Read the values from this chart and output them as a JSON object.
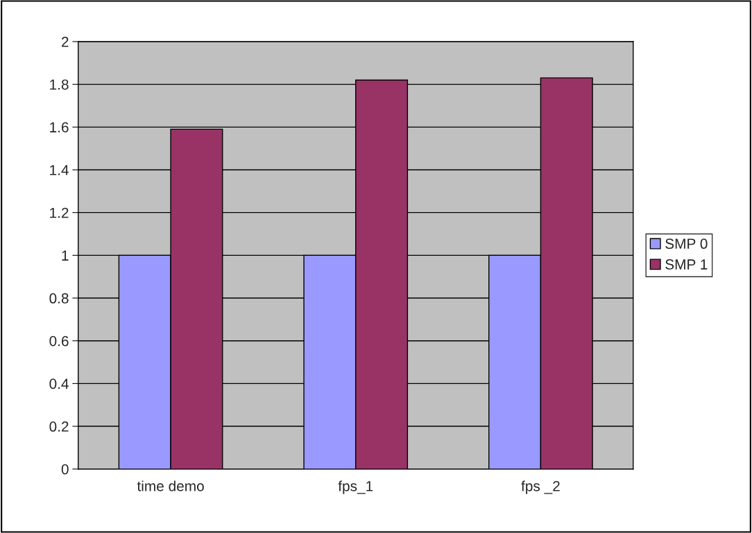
{
  "chart_data": {
    "type": "bar",
    "categories": [
      "time demo",
      "fps_1",
      "fps _2"
    ],
    "series": [
      {
        "name": "SMP 0",
        "color": "#9999ff",
        "values": [
          1,
          1,
          1
        ]
      },
      {
        "name": "SMP 1",
        "color": "#993366",
        "values": [
          1.59,
          1.82,
          1.83
        ]
      }
    ],
    "ylim": [
      0,
      2
    ],
    "yticks": [
      0,
      0.2,
      0.4,
      0.6,
      0.8,
      1,
      1.2,
      1.4,
      1.6,
      1.8,
      2
    ],
    "grid": "y",
    "legend": "right"
  }
}
